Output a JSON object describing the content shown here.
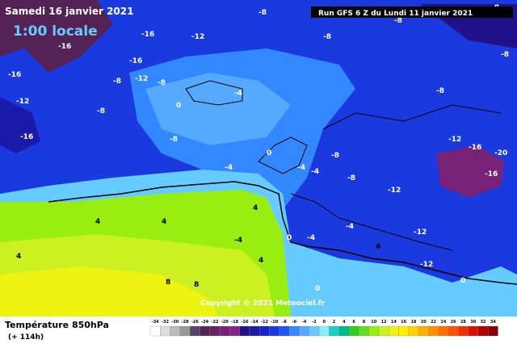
{
  "header": {
    "date": "Samedi 16 janvier 2021",
    "local_time": "1:00 locale",
    "run": "Run GFS 6 Z du Lundi 11 janvier 2021",
    "copyright": "Copyright © 2021 Meteociel.fr"
  },
  "legend": {
    "title": "Température 850hPa",
    "lead": "(+ 114h)",
    "ticks": [
      -34,
      -32,
      -30,
      -28,
      -26,
      -24,
      -22,
      -20,
      -18,
      -16,
      -14,
      -12,
      -10,
      -8,
      -6,
      -4,
      -2,
      0,
      2,
      4,
      6,
      8,
      10,
      12,
      14,
      16,
      18,
      20,
      22,
      24,
      26,
      28,
      30,
      32,
      34
    ],
    "colors": [
      "#ffffff",
      "#dddddd",
      "#bbbbbb",
      "#999999",
      "#554466",
      "#552255",
      "#662266",
      "#772277",
      "#882288",
      "#221188",
      "#1a1aa8",
      "#1a22c8",
      "#1a3ae0",
      "#2255f0",
      "#3388ff",
      "#55aaff",
      "#66ccff",
      "#88eeff",
      "#22cccc",
      "#00bb88",
      "#33cc22",
      "#66dd22",
      "#99ee11",
      "#ccf022",
      "#eef411",
      "#ffee00",
      "#ffd000",
      "#ffb000",
      "#ff9000",
      "#ff7000",
      "#ff5000",
      "#f03000",
      "#d81000",
      "#b00000",
      "#880000"
    ]
  },
  "contour_labels": [
    -16,
    -12,
    -16,
    -16,
    -12,
    -16,
    -8,
    -12,
    -8,
    -8,
    -8,
    -16,
    -8,
    -8,
    -8,
    -8,
    -8,
    -8,
    -12,
    -16,
    -20,
    -16,
    -8,
    -12,
    -12,
    -12,
    -8,
    -4,
    0,
    0,
    -4,
    -4,
    -4,
    -4,
    0,
    -4,
    4,
    4,
    4,
    4,
    4,
    8,
    8,
    4,
    -4,
    0,
    0
  ]
}
